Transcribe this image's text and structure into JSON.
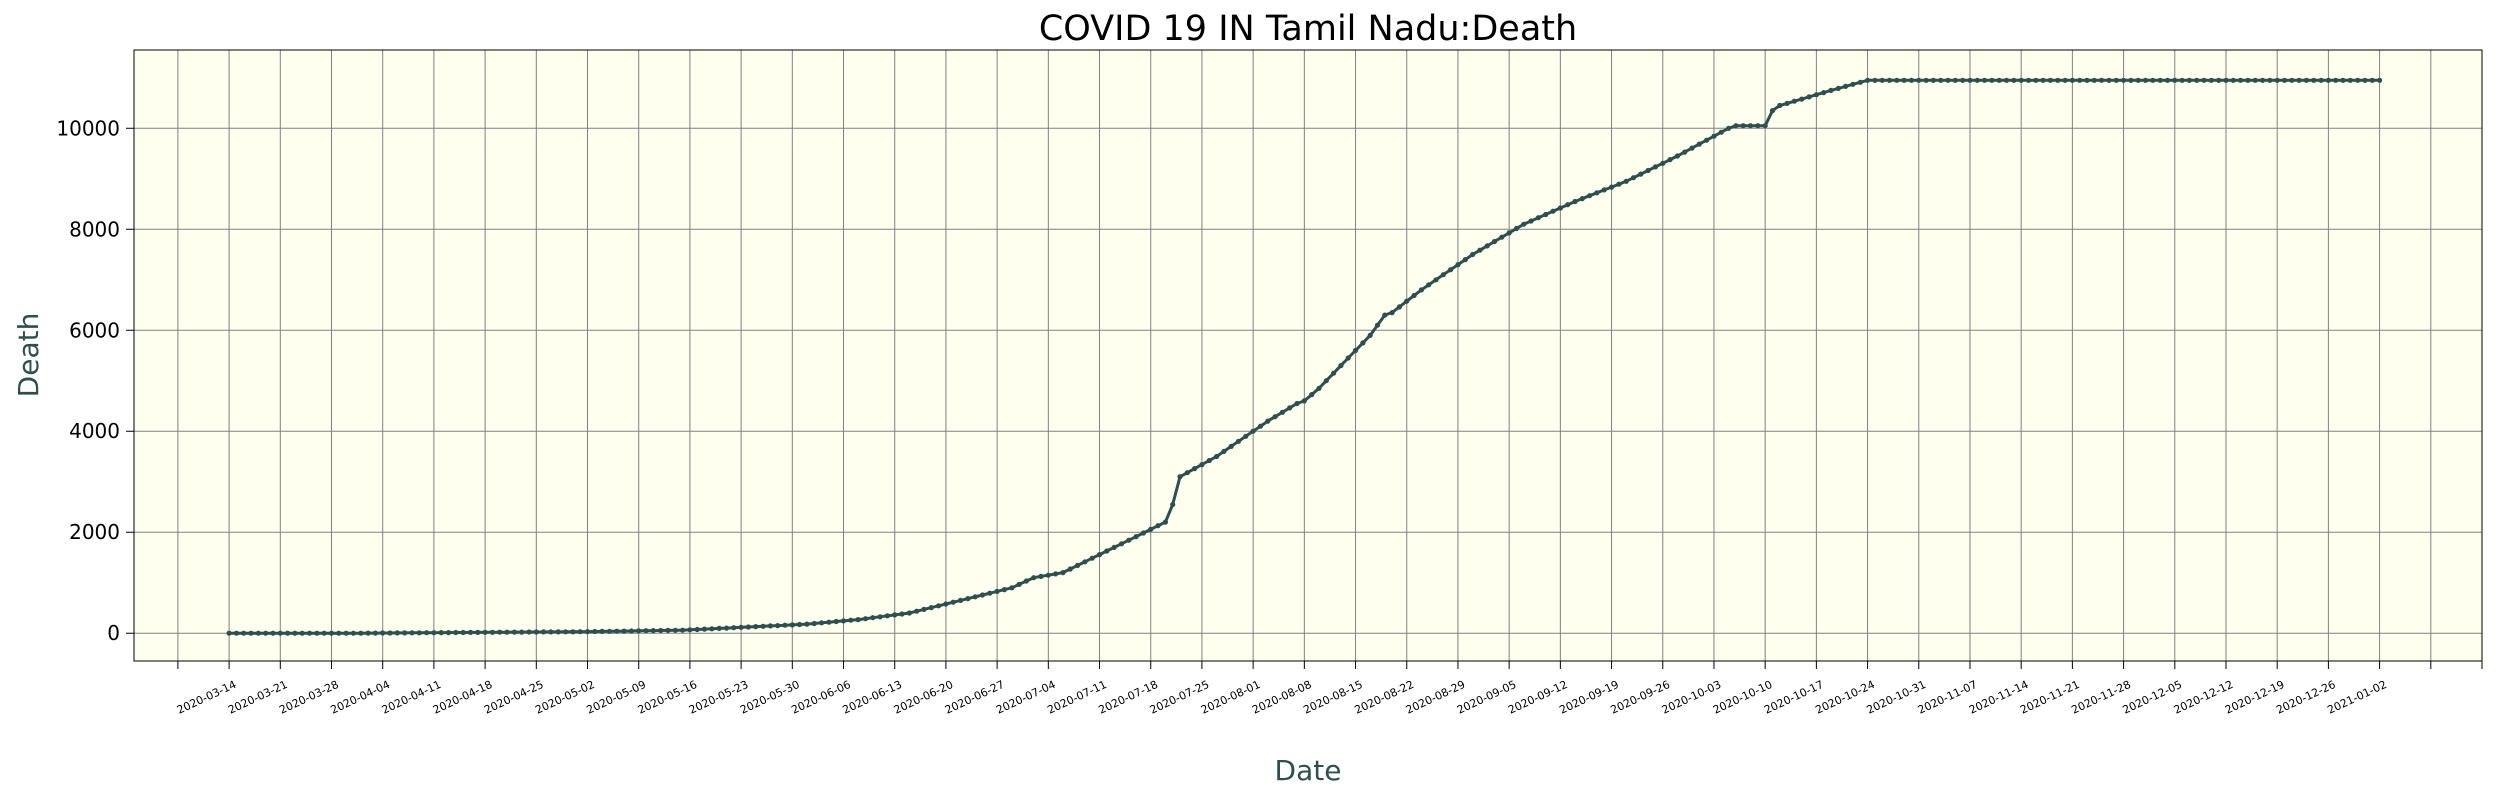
{
  "chart_data": {
    "type": "line",
    "title": "COVID 19 IN Tamil Nadu:Death",
    "xlabel": "Date",
    "ylabel": "Death",
    "ylim": [
      -550,
      11550
    ],
    "yticks": [
      0,
      2000,
      4000,
      6000,
      8000,
      10000
    ],
    "xlim": [
      "2020-03-01",
      "2021-01-16"
    ],
    "grid": true,
    "colors": {
      "background": "#fffff0",
      "line": "#2f4f4f",
      "grid": "#808080",
      "label": "#2f4f4f"
    },
    "xticks": [
      "2020-03-14",
      "2020-03-21",
      "2020-03-28",
      "2020-04-04",
      "2020-04-11",
      "2020-04-18",
      "2020-04-25",
      "2020-05-02",
      "2020-05-09",
      "2020-05-16",
      "2020-05-23",
      "2020-05-30",
      "2020-06-06",
      "2020-06-13",
      "2020-06-20",
      "2020-06-27",
      "2020-07-04",
      "2020-07-11",
      "2020-07-18",
      "2020-07-25",
      "2020-08-01",
      "2020-08-08",
      "2020-08-15",
      "2020-08-22",
      "2020-08-29",
      "2020-09-05",
      "2020-09-12",
      "2020-09-19",
      "2020-09-26",
      "2020-10-03",
      "2020-10-10",
      "2020-10-17",
      "2020-10-24",
      "2020-10-31",
      "2020-11-07",
      "2020-11-14",
      "2020-11-21",
      "2020-11-28",
      "2020-12-05",
      "2020-12-12",
      "2020-12-19",
      "2020-12-26",
      "2021-01-02"
    ],
    "series": [
      {
        "x": [
          "2020-03-14",
          "2020-04-01",
          "2020-04-15",
          "2020-05-01",
          "2020-05-15",
          "2020-06-01",
          "2020-06-08",
          "2020-06-15",
          "2020-06-22",
          "2020-06-29",
          "2020-07-02",
          "2020-07-06",
          "2020-07-13",
          "2020-07-20",
          "2020-07-21",
          "2020-07-22",
          "2020-07-27",
          "2020-08-03",
          "2020-08-07",
          "2020-08-08",
          "2020-08-10",
          "2020-08-17",
          "2020-08-19",
          "2020-08-20",
          "2020-08-24",
          "2020-08-31",
          "2020-09-07",
          "2020-09-14",
          "2020-09-21",
          "2020-09-28",
          "2020-10-05",
          "2020-10-06",
          "2020-10-07",
          "2020-10-08",
          "2020-10-09",
          "2020-10-10",
          "2020-10-11",
          "2020-10-12",
          "2020-10-19",
          "2020-10-24",
          "2021-01-02"
        ],
        "values": [
          0,
          1,
          15,
          30,
          60,
          180,
          270,
          400,
          650,
          900,
          1100,
          1200,
          1700,
          2200,
          2550,
          3100,
          3500,
          4200,
          4550,
          4600,
          4850,
          5900,
          6300,
          6350,
          6800,
          7500,
          8100,
          8550,
          8950,
          9450,
          10000,
          10050,
          10050,
          10050,
          10050,
          10050,
          10350,
          10450,
          10750,
          10950,
          10950
        ]
      }
    ]
  }
}
